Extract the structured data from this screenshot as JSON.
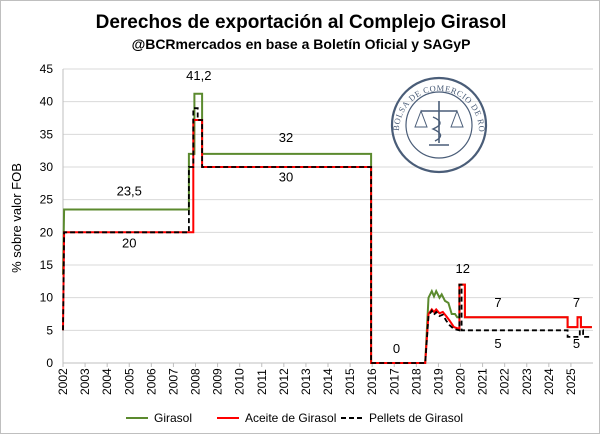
{
  "chart_data": {
    "type": "line",
    "title": "Derechos de exportación al Complejo Girasol",
    "subtitle": "@BCRmercados en base a Boletín Oficial y SAGyP",
    "ylabel": "% sobre valor FOB",
    "xlabel": "",
    "xlim": [
      2002,
      2026
    ],
    "ylim": [
      0,
      45
    ],
    "yticks": [
      "0",
      "5",
      "10",
      "15",
      "20",
      "25",
      "30",
      "35",
      "40",
      "45"
    ],
    "xticks": [
      "2002",
      "2003",
      "2004",
      "2005",
      "2006",
      "2007",
      "2008",
      "2009",
      "2010",
      "2011",
      "2012",
      "2013",
      "2014",
      "2015",
      "2016",
      "2017",
      "2018",
      "2019",
      "2020",
      "2021",
      "2022",
      "2023",
      "2024",
      "2025"
    ],
    "grid": "horizontal",
    "legend_position": "bottom",
    "series": [
      {
        "name": "Girasol",
        "color": "#5b8a2e",
        "style": "solid",
        "points": [
          [
            2002.0,
            13.5
          ],
          [
            2002.05,
            23.5
          ],
          [
            2007.7,
            23.5
          ],
          [
            2007.7,
            32
          ],
          [
            2007.95,
            32
          ],
          [
            2007.95,
            41.2
          ],
          [
            2008.3,
            41.2
          ],
          [
            2008.3,
            32
          ],
          [
            2015.95,
            32
          ],
          [
            2015.95,
            0
          ],
          [
            2018.4,
            0
          ],
          [
            2018.55,
            10
          ],
          [
            2018.7,
            11
          ],
          [
            2018.8,
            10.2
          ],
          [
            2018.9,
            11
          ],
          [
            2019.05,
            10
          ],
          [
            2019.15,
            10.5
          ],
          [
            2019.3,
            9.5
          ],
          [
            2019.45,
            9.2
          ],
          [
            2019.6,
            7.5
          ],
          [
            2019.75,
            7.5
          ],
          [
            2019.85,
            7
          ],
          [
            2019.95,
            7
          ],
          [
            2019.95,
            12
          ],
          [
            2020.2,
            12
          ],
          [
            2020.2,
            7
          ],
          [
            2024.85,
            7
          ],
          [
            2024.85,
            5.5
          ],
          [
            2025.3,
            5.5
          ],
          [
            2025.3,
            7
          ],
          [
            2025.45,
            7
          ],
          [
            2025.45,
            5.5
          ],
          [
            2025.95,
            5.5
          ]
        ]
      },
      {
        "name": "Aceite de Girasol",
        "color": "#ff0000",
        "style": "solid",
        "points": [
          [
            2002.0,
            5
          ],
          [
            2002.05,
            20
          ],
          [
            2007.9,
            20
          ],
          [
            2007.9,
            37.2
          ],
          [
            2008.3,
            37.2
          ],
          [
            2008.3,
            30
          ],
          [
            2015.95,
            30
          ],
          [
            2015.95,
            0
          ],
          [
            2018.4,
            0
          ],
          [
            2018.55,
            7.5
          ],
          [
            2018.7,
            8.2
          ],
          [
            2018.8,
            7.8
          ],
          [
            2018.9,
            8.2
          ],
          [
            2019.05,
            7.6
          ],
          [
            2019.2,
            7.8
          ],
          [
            2019.35,
            7.2
          ],
          [
            2019.5,
            6.5
          ],
          [
            2019.7,
            5.5
          ],
          [
            2019.95,
            5.2
          ],
          [
            2019.95,
            12
          ],
          [
            2020.2,
            12
          ],
          [
            2020.2,
            7
          ],
          [
            2024.85,
            7
          ],
          [
            2024.85,
            5.5
          ],
          [
            2025.3,
            5.5
          ],
          [
            2025.3,
            7
          ],
          [
            2025.45,
            7
          ],
          [
            2025.45,
            5.5
          ],
          [
            2025.95,
            5.5
          ]
        ]
      },
      {
        "name": "Pellets de Girasol",
        "color": "#000000",
        "style": "dashed",
        "points": [
          [
            2002.0,
            5
          ],
          [
            2002.05,
            20
          ],
          [
            2007.7,
            20
          ],
          [
            2007.7,
            30
          ],
          [
            2007.9,
            30
          ],
          [
            2007.9,
            39
          ],
          [
            2008.1,
            39
          ],
          [
            2008.1,
            37.2
          ],
          [
            2008.3,
            37.2
          ],
          [
            2008.3,
            30
          ],
          [
            2015.95,
            30
          ],
          [
            2015.95,
            0
          ],
          [
            2018.4,
            0
          ],
          [
            2018.55,
            7.2
          ],
          [
            2018.7,
            8
          ],
          [
            2018.8,
            7.4
          ],
          [
            2018.9,
            7.8
          ],
          [
            2019.05,
            7.2
          ],
          [
            2019.2,
            7.4
          ],
          [
            2019.35,
            6.5
          ],
          [
            2019.5,
            5.8
          ],
          [
            2019.7,
            5.2
          ],
          [
            2019.95,
            5
          ],
          [
            2019.95,
            12
          ],
          [
            2020.05,
            12
          ],
          [
            2020.05,
            5
          ],
          [
            2024.85,
            5
          ],
          [
            2024.85,
            4
          ],
          [
            2025.4,
            4
          ],
          [
            2025.4,
            5
          ],
          [
            2025.55,
            5
          ],
          [
            2025.55,
            4
          ],
          [
            2025.95,
            4
          ]
        ]
      }
    ],
    "annotations": [
      {
        "text": "41,2",
        "x": 2008.15,
        "y": 43.3
      },
      {
        "text": "32",
        "x": 2012.1,
        "y": 33.8
      },
      {
        "text": "30",
        "x": 2012.1,
        "y": 27.8
      },
      {
        "text": "23,5",
        "x": 2005.0,
        "y": 25.6
      },
      {
        "text": "20",
        "x": 2005.0,
        "y": 17.7
      },
      {
        "text": "0",
        "x": 2017.1,
        "y": 1.5
      },
      {
        "text": "12",
        "x": 2020.1,
        "y": 13.8
      },
      {
        "text": "7",
        "x": 2021.7,
        "y": 8.6
      },
      {
        "text": "5",
        "x": 2021.7,
        "y": 2.3
      },
      {
        "text": "7",
        "x": 2025.25,
        "y": 8.6
      },
      {
        "text": "5",
        "x": 2025.25,
        "y": 2.3
      }
    ]
  },
  "seal": {
    "text": "BOLSA DE COMERCIO DE ROSARIO",
    "color": "#4a5d78"
  }
}
